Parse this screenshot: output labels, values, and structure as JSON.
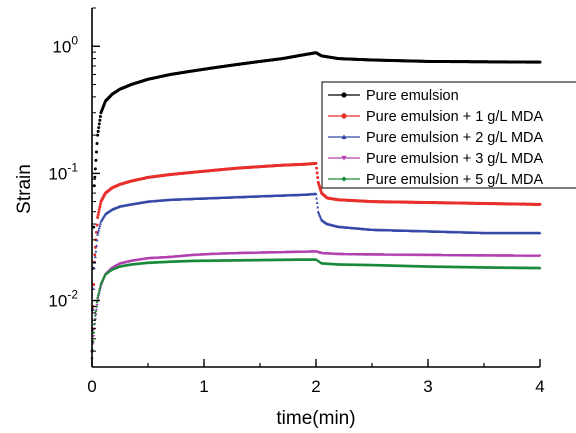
{
  "chart_data": {
    "type": "scatter",
    "title": "",
    "xlabel": "time(min)",
    "ylabel": "Strain",
    "xlim": [
      0,
      4
    ],
    "ylim": [
      0.003,
      2.0
    ],
    "yscale": "log",
    "x_ticks": [
      0,
      1,
      2,
      3,
      4
    ],
    "y_ticks": [
      {
        "value": 0.01,
        "base": "10",
        "exp": "-2"
      },
      {
        "value": 0.1,
        "base": "10",
        "exp": "-1"
      },
      {
        "value": 1,
        "base": "10",
        "exp": "0"
      }
    ],
    "grid": false,
    "legend_position": "top-right",
    "series": [
      {
        "name": "Pure emulsion",
        "color": "#000000",
        "marker": "circle",
        "x": [
          0,
          0.02,
          0.05,
          0.08,
          0.12,
          0.18,
          0.25,
          0.35,
          0.5,
          0.7,
          0.9,
          1.1,
          1.3,
          1.5,
          1.7,
          1.9,
          2.0,
          2.05,
          2.2,
          2.5,
          3.0,
          3.5,
          4.0
        ],
        "y": [
          0.004,
          0.08,
          0.2,
          0.3,
          0.37,
          0.42,
          0.46,
          0.5,
          0.55,
          0.6,
          0.64,
          0.68,
          0.72,
          0.76,
          0.8,
          0.86,
          0.89,
          0.84,
          0.8,
          0.78,
          0.76,
          0.755,
          0.75
        ]
      },
      {
        "name": "Pure emulsion + 1 g/L MDA",
        "color": "#e8302c",
        "marker": "circle",
        "x": [
          0,
          0.02,
          0.05,
          0.08,
          0.12,
          0.18,
          0.25,
          0.35,
          0.5,
          0.7,
          0.9,
          1.1,
          1.3,
          1.5,
          1.7,
          1.9,
          2.0,
          2.02,
          2.05,
          2.1,
          2.2,
          2.5,
          3.0,
          3.5,
          4.0
        ],
        "y": [
          0.004,
          0.02,
          0.045,
          0.06,
          0.07,
          0.077,
          0.082,
          0.087,
          0.093,
          0.098,
          0.102,
          0.106,
          0.11,
          0.113,
          0.116,
          0.118,
          0.12,
          0.085,
          0.07,
          0.064,
          0.062,
          0.06,
          0.059,
          0.058,
          0.057
        ]
      },
      {
        "name": "Pure emulsion + 2 g/L MDA",
        "color": "#3548a8",
        "marker": "triangle-up",
        "x": [
          0,
          0.02,
          0.05,
          0.08,
          0.12,
          0.18,
          0.25,
          0.35,
          0.5,
          0.7,
          0.9,
          1.1,
          1.3,
          1.5,
          1.7,
          1.9,
          2.0,
          2.02,
          2.05,
          2.1,
          2.2,
          2.5,
          3.0,
          3.5,
          4.0
        ],
        "y": [
          0.004,
          0.018,
          0.033,
          0.042,
          0.048,
          0.052,
          0.055,
          0.057,
          0.06,
          0.062,
          0.063,
          0.064,
          0.065,
          0.066,
          0.067,
          0.068,
          0.069,
          0.05,
          0.043,
          0.04,
          0.038,
          0.036,
          0.035,
          0.034,
          0.034
        ]
      },
      {
        "name": "Pure emulsion + 3 g/L MDA",
        "color": "#b040b0",
        "marker": "triangle-down",
        "x": [
          0,
          0.02,
          0.05,
          0.08,
          0.12,
          0.18,
          0.25,
          0.35,
          0.5,
          0.7,
          0.9,
          1.1,
          1.3,
          1.5,
          1.7,
          1.9,
          2.0,
          2.05,
          2.2,
          2.5,
          3.0,
          3.5,
          4.0
        ],
        "y": [
          0.0035,
          0.006,
          0.01,
          0.013,
          0.016,
          0.018,
          0.0195,
          0.0205,
          0.0215,
          0.022,
          0.0228,
          0.0233,
          0.0236,
          0.0238,
          0.024,
          0.0242,
          0.0243,
          0.0236,
          0.0232,
          0.023,
          0.0228,
          0.0226,
          0.0225
        ]
      },
      {
        "name": "Pure emulsion + 5 g/L MDA",
        "color": "#1a8a3a",
        "marker": "diamond",
        "x": [
          0,
          0.02,
          0.05,
          0.08,
          0.12,
          0.18,
          0.25,
          0.35,
          0.5,
          0.7,
          0.9,
          1.1,
          1.3,
          1.5,
          1.7,
          1.9,
          2.0,
          2.05,
          2.2,
          2.5,
          3.0,
          3.5,
          4.0
        ],
        "y": [
          0.0035,
          0.0065,
          0.0105,
          0.0135,
          0.016,
          0.0175,
          0.0185,
          0.0192,
          0.0198,
          0.0202,
          0.0205,
          0.0206,
          0.0207,
          0.0208,
          0.0209,
          0.021,
          0.021,
          0.0196,
          0.0192,
          0.019,
          0.0185,
          0.0182,
          0.018
        ]
      }
    ]
  }
}
